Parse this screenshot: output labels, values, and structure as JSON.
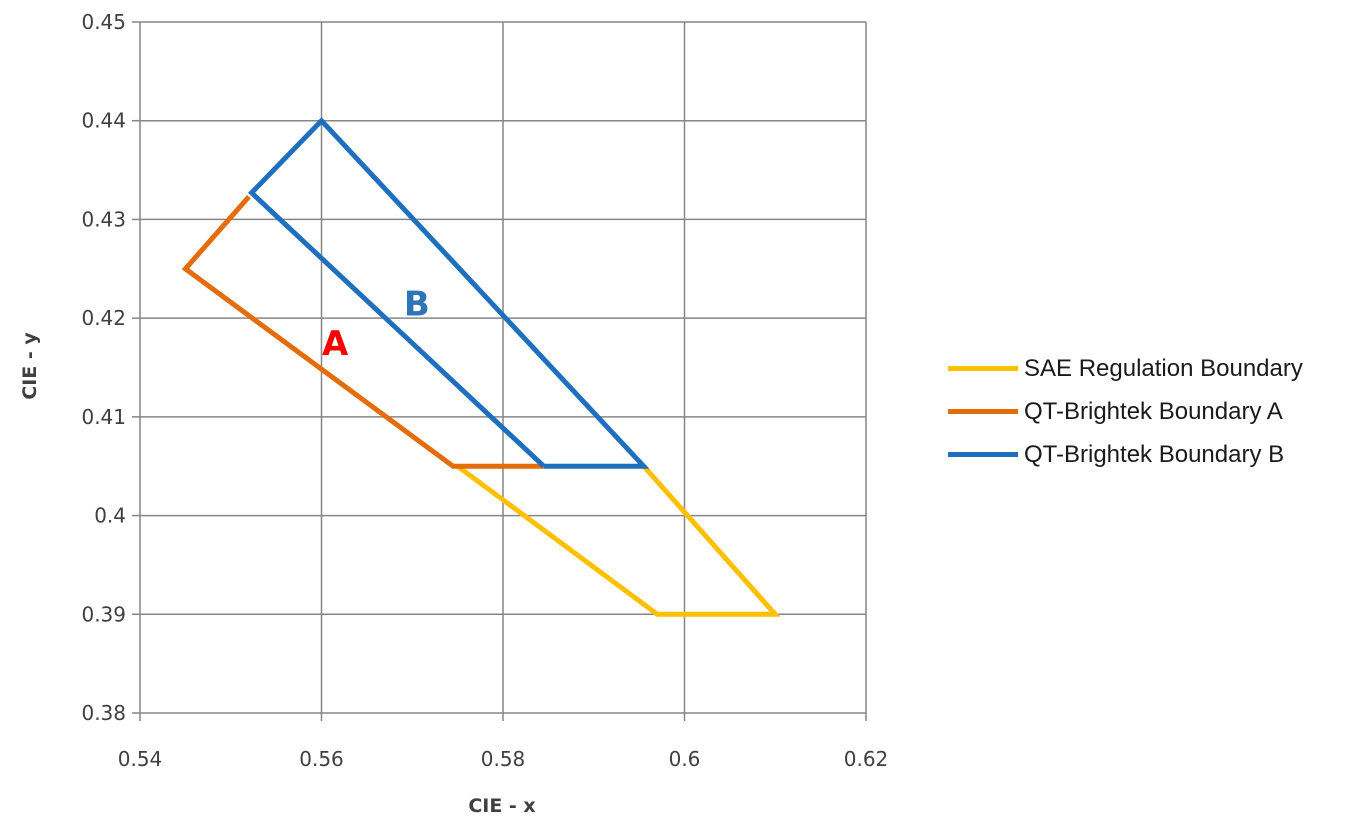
{
  "chart_data": {
    "type": "scatter",
    "subtype": "line",
    "xlabel": "CIE - x",
    "ylabel": "CIE - y",
    "xlim": [
      0.54,
      0.62
    ],
    "ylim": [
      0.38,
      0.45
    ],
    "x_ticks": [
      "0.54",
      "0.56",
      "0.58",
      "0.6",
      "0.62"
    ],
    "y_ticks": [
      "0.45",
      "0.44",
      "0.43",
      "0.42",
      "0.41",
      "0.4",
      "0.39",
      "0.38"
    ],
    "grid": true,
    "legend_position": "right",
    "series": [
      {
        "name": "SAE Regulation Boundary",
        "color": "#FFC000",
        "points": [
          [
            0.5955,
            0.405
          ],
          [
            0.61,
            0.39
          ],
          [
            0.597,
            0.39
          ],
          [
            0.575,
            0.405
          ]
        ]
      },
      {
        "name": "QT-Brightek Boundary A",
        "color": "#E46C0A",
        "points": [
          [
            0.5845,
            0.405
          ],
          [
            0.5745,
            0.405
          ],
          [
            0.545,
            0.425
          ],
          [
            0.552,
            0.4323
          ]
        ]
      },
      {
        "name": "QT-Brightek Boundary B",
        "color": "#1F6FBF",
        "points": [
          [
            0.5845,
            0.405
          ],
          [
            0.5955,
            0.405
          ],
          [
            0.56,
            0.44
          ],
          [
            0.5523,
            0.4327
          ],
          [
            0.5845,
            0.405
          ]
        ]
      }
    ],
    "annotations": [
      {
        "text": "A",
        "x": 0.5615,
        "y": 0.4175,
        "color": "#FF0000"
      },
      {
        "text": "B",
        "x": 0.5705,
        "y": 0.4215,
        "color": "#2E75B6"
      }
    ]
  }
}
